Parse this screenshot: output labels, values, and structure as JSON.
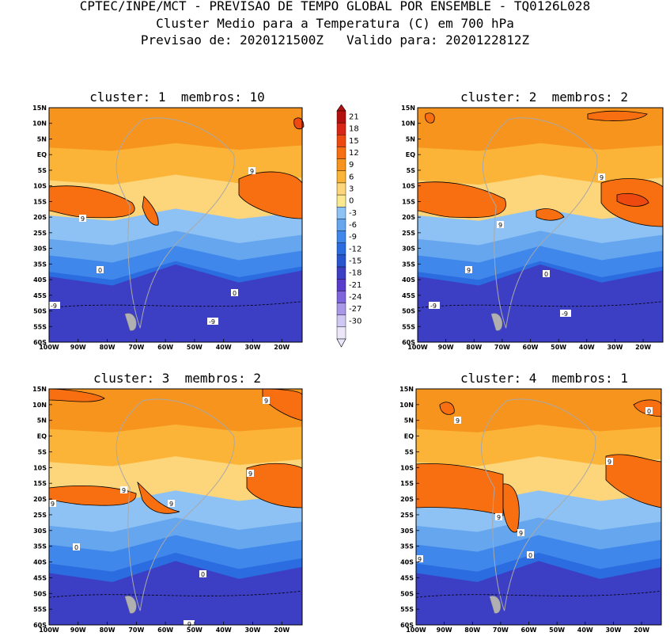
{
  "header": {
    "line1": "CPTEC/INPE/MCT - PREVISAO DE TEMPO GLOBAL POR ENSEMBLE - TQ0126L028",
    "line2": "Cluster Medio para a Temperatura (C) em 700 hPa",
    "line3": "Previsao de: 2020121500Z   Valido para: 2020122812Z"
  },
  "panels": [
    {
      "title": "cluster: 1  membros: 10",
      "labels": [
        "9",
        "9",
        "0",
        "0",
        "-9",
        "-9"
      ]
    },
    {
      "title": "cluster: 2  membros: 2",
      "labels": [
        "9",
        "9",
        "9",
        "0",
        "-9",
        "-9"
      ]
    },
    {
      "title": "cluster: 3  membros: 2",
      "labels": [
        "9",
        "9",
        "9",
        "9",
        "9",
        "0",
        "0",
        "-9"
      ]
    },
    {
      "title": "cluster: 4  membros: 1",
      "labels": [
        "9",
        "9",
        "9",
        "9",
        "9",
        "0",
        "0"
      ]
    }
  ],
  "axes": {
    "lat_labels": [
      "15N",
      "10N",
      "5N",
      "EQ",
      "5S",
      "10S",
      "15S",
      "20S",
      "25S",
      "30S",
      "35S",
      "40S",
      "45S",
      "50S",
      "55S",
      "60S"
    ],
    "lon_labels": [
      "100W",
      "90W",
      "80W",
      "70W",
      "60W",
      "50W",
      "40W",
      "30W",
      "20W"
    ]
  },
  "colorbar": {
    "labels": [
      "21",
      "18",
      "15",
      "12",
      "9",
      "6",
      "3",
      "0",
      "-3",
      "-6",
      "-9",
      "-12",
      "-15",
      "-18",
      "-21",
      "-24",
      "-27",
      "-30"
    ],
    "colors": [
      "#b31010",
      "#d92515",
      "#ee4a10",
      "#f76f10",
      "#f7941e",
      "#fbb437",
      "#fdd57a",
      "#fbe98f",
      "#8ec2f4",
      "#65a6ef",
      "#3f87ea",
      "#2b6ce0",
      "#2a55cf",
      "#3c3fc4",
      "#5a3ccc",
      "#7f65dc",
      "#a898e6",
      "#d0c8f2",
      "#ebe6f8"
    ]
  }
}
